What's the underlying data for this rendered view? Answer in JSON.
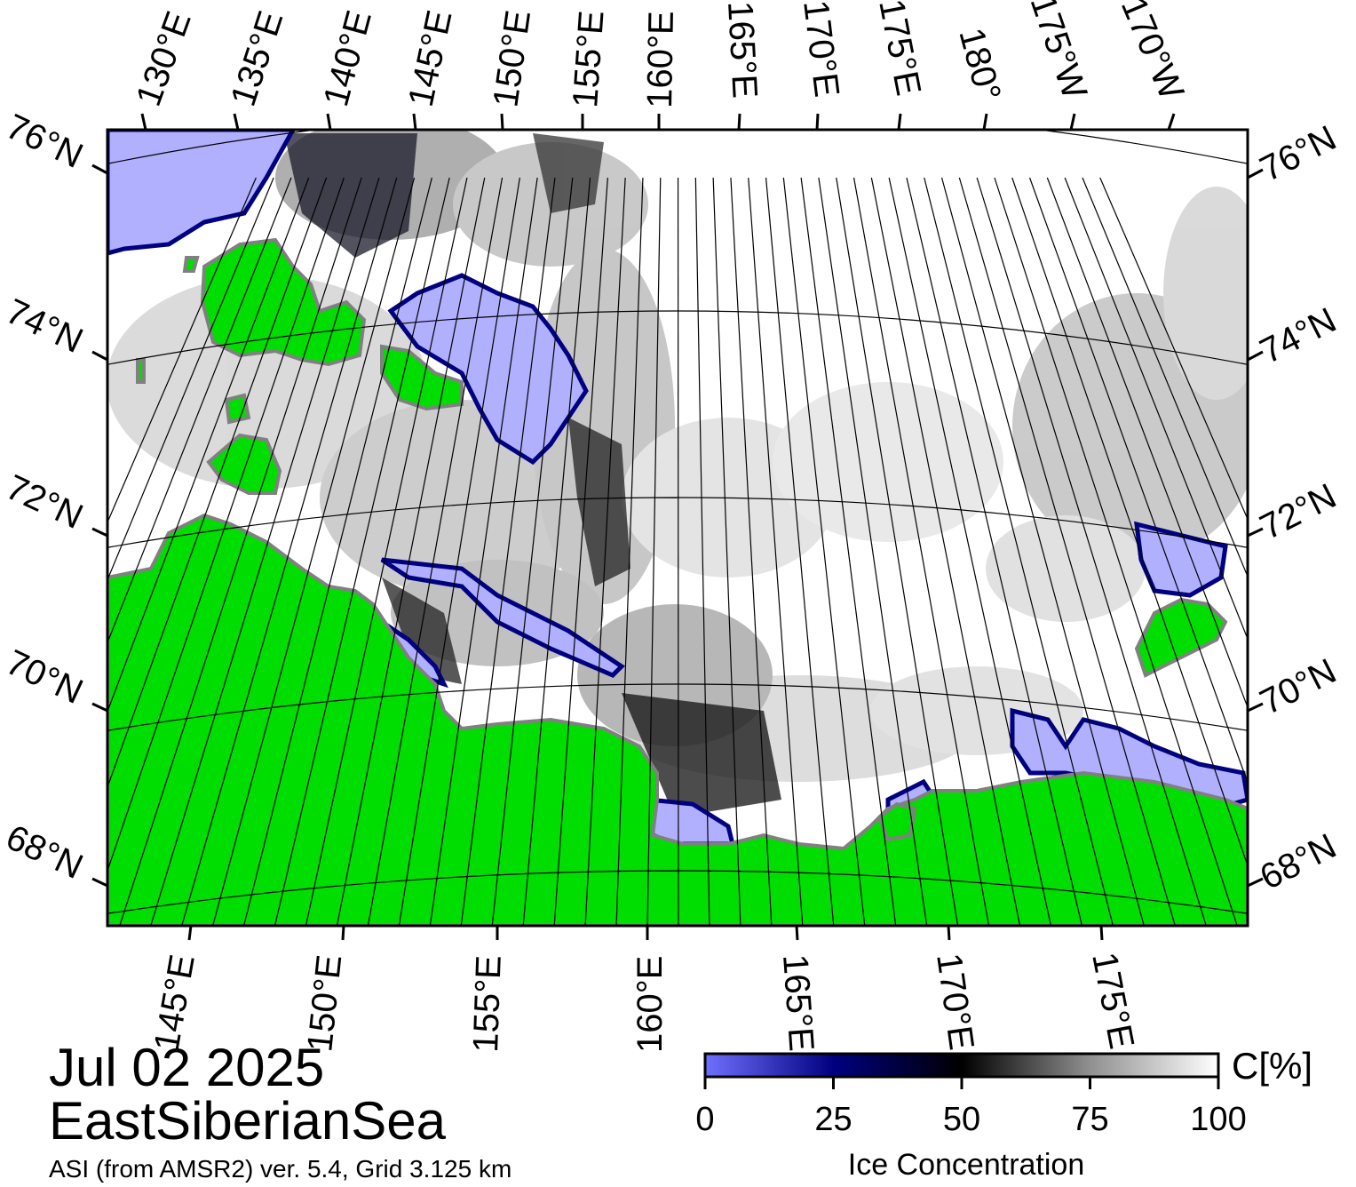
{
  "map": {
    "date": "Jul 02 2025",
    "region": "EastSiberianSea",
    "source": "ASI (from AMSR2) ver. 5.4,  Grid 3.125 km",
    "top_lon_labels": [
      "130°E",
      "135°E",
      "140°E",
      "145°E",
      "150°E",
      "155°E",
      "160°E",
      "165°E",
      "170°E",
      "175°E",
      "180°",
      "175°W",
      "170°W"
    ],
    "bottom_lon_labels": [
      "145°E",
      "150°E",
      "155°E",
      "160°E",
      "165°E",
      "170°E",
      "175°E"
    ],
    "left_lat_labels": [
      "76°N",
      "74°N",
      "72°N",
      "70°N",
      "68°N"
    ],
    "right_lat_labels": [
      "76°N",
      "74°N",
      "72°N",
      "70°N",
      "68°N"
    ],
    "colors": {
      "land": "#00dd00",
      "open_water": "#b0b0ff",
      "ice_high": "#ffffff",
      "ice_mid": "#000000",
      "ice_low": "#000066",
      "coast": "#808080"
    }
  },
  "colorbar": {
    "title": "Ice Concentration",
    "unit": "C[%]",
    "ticks": [
      "0",
      "25",
      "50",
      "75",
      "100"
    ],
    "stops": [
      {
        "value": 0,
        "color": "#7070ff"
      },
      {
        "value": 25,
        "color": "#000080"
      },
      {
        "value": 50,
        "color": "#000000"
      },
      {
        "value": 75,
        "color": "#909090"
      },
      {
        "value": 100,
        "color": "#ffffff"
      }
    ]
  }
}
